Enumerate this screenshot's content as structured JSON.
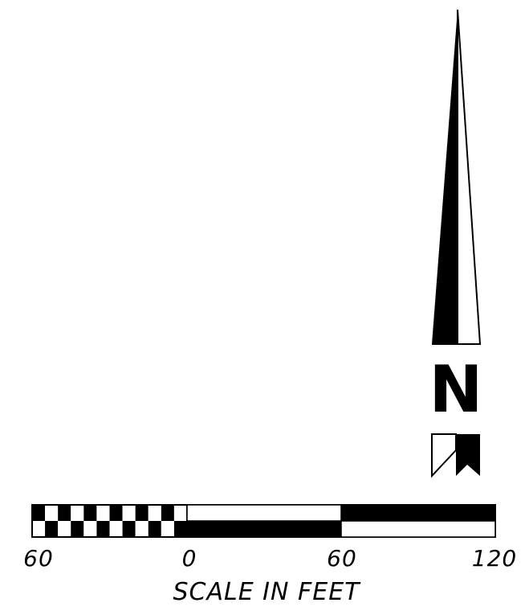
{
  "north_arrow": {
    "letter": "N"
  },
  "scale_bar": {
    "title": "SCALE IN FEET",
    "units": "feet",
    "tick_labels": [
      "60",
      "0",
      "60",
      "120"
    ],
    "subdivision_count_left": 6,
    "fill_color": "#000000",
    "background_color": "#ffffff"
  }
}
